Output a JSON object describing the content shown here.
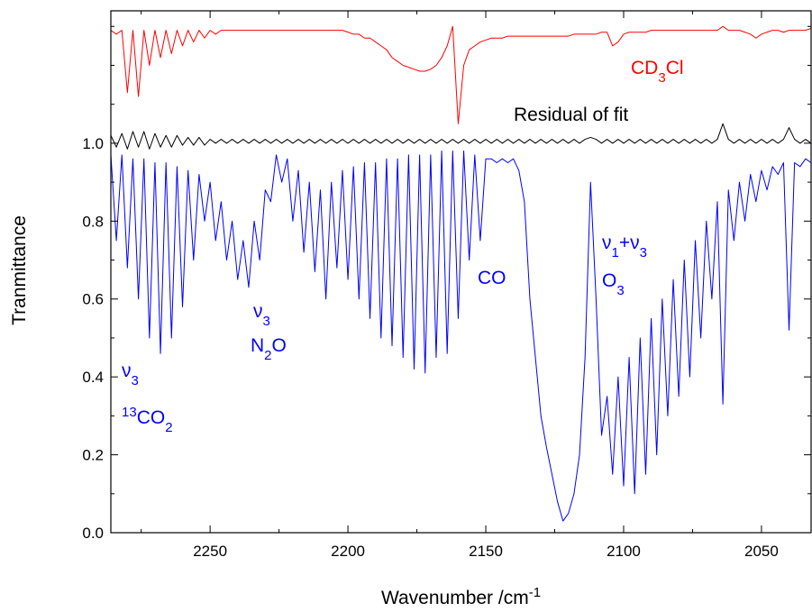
{
  "chart_data": {
    "type": "line",
    "x_label": [
      {
        "text": "Wavenumber /cm"
      },
      {
        "text": "-1",
        "shift": "super"
      }
    ],
    "y_label": "Tranmittance",
    "xlim": [
      2286,
      2032
    ],
    "ylim": [
      0,
      1.34
    ],
    "xticks": [
      2250,
      2200,
      2150,
      2100,
      2050
    ],
    "xminorticks": [
      2275,
      2225,
      2175,
      2125,
      2075
    ],
    "yticks": [
      {
        "value": 0,
        "label": "0.0"
      },
      0.2,
      0.4,
      0.6,
      0.8,
      {
        "value": 1,
        "label": "1.0"
      }
    ],
    "yminorticks": [
      0.1,
      0.3,
      0.5,
      0.7,
      0.9,
      1.1,
      1.2,
      1.3
    ],
    "x": [
      2286,
      2284,
      2282,
      2280,
      2278,
      2276,
      2274,
      2272,
      2270,
      2268,
      2266,
      2264,
      2262,
      2260,
      2258,
      2256,
      2254,
      2252,
      2250,
      2248,
      2246,
      2244,
      2242,
      2240,
      2238,
      2236,
      2234,
      2232,
      2230,
      2228,
      2226,
      2224,
      2222,
      2220,
      2218,
      2216,
      2214,
      2212,
      2210,
      2208,
      2206,
      2204,
      2202,
      2200,
      2198,
      2196,
      2194,
      2192,
      2190,
      2188,
      2186,
      2184,
      2182,
      2180,
      2178,
      2176,
      2174,
      2172,
      2170,
      2168,
      2166,
      2164,
      2162,
      2160,
      2158,
      2156,
      2154,
      2152,
      2150,
      2148,
      2146,
      2144,
      2142,
      2140,
      2138,
      2136,
      2134,
      2132,
      2130,
      2128,
      2126,
      2124,
      2122,
      2120,
      2118,
      2116,
      2114,
      2112,
      2110,
      2108,
      2106,
      2104,
      2102,
      2100,
      2098,
      2096,
      2094,
      2092,
      2090,
      2088,
      2086,
      2084,
      2082,
      2080,
      2078,
      2076,
      2074,
      2072,
      2070,
      2068,
      2066,
      2064,
      2062,
      2060,
      2058,
      2056,
      2054,
      2052,
      2050,
      2048,
      2046,
      2044,
      2042,
      2040,
      2038,
      2036,
      2034,
      2032
    ],
    "series": [
      {
        "color": "#0000ff",
        "values": [
          0.97,
          0.75,
          0.97,
          0.68,
          0.96,
          0.6,
          0.96,
          0.5,
          0.95,
          0.46,
          0.95,
          0.5,
          0.94,
          0.58,
          0.93,
          0.7,
          0.92,
          0.8,
          0.9,
          0.75,
          0.85,
          0.7,
          0.8,
          0.65,
          0.75,
          0.63,
          0.8,
          0.7,
          0.88,
          0.85,
          0.97,
          0.9,
          0.96,
          0.8,
          0.93,
          0.72,
          0.9,
          0.67,
          0.88,
          0.6,
          0.9,
          0.68,
          0.93,
          0.65,
          0.94,
          0.6,
          0.95,
          0.55,
          0.95,
          0.5,
          0.96,
          0.48,
          0.96,
          0.45,
          0.97,
          0.42,
          0.97,
          0.41,
          0.97,
          0.45,
          0.98,
          0.46,
          0.98,
          0.55,
          0.98,
          0.7,
          0.97,
          0.75,
          0.96,
          0.96,
          0.95,
          0.96,
          0.95,
          0.96,
          0.93,
          0.85,
          0.6,
          0.45,
          0.3,
          0.22,
          0.15,
          0.08,
          0.03,
          0.05,
          0.1,
          0.2,
          0.45,
          0.9,
          0.6,
          0.25,
          0.35,
          0.15,
          0.4,
          0.12,
          0.45,
          0.1,
          0.5,
          0.15,
          0.55,
          0.2,
          0.6,
          0.3,
          0.65,
          0.35,
          0.7,
          0.4,
          0.75,
          0.5,
          0.8,
          0.6,
          0.85,
          0.33,
          0.88,
          0.75,
          0.9,
          0.8,
          0.92,
          0.85,
          0.93,
          0.88,
          0.94,
          0.92,
          0.95,
          0.52,
          0.95,
          0.94,
          0.96,
          0.95
        ]
      },
      {
        "color": "#ff0000",
        "values": [
          1.29,
          1.28,
          1.29,
          1.13,
          1.29,
          1.12,
          1.29,
          1.2,
          1.29,
          1.22,
          1.29,
          1.23,
          1.29,
          1.25,
          1.29,
          1.26,
          1.29,
          1.27,
          1.29,
          1.28,
          1.29,
          1.29,
          1.29,
          1.29,
          1.29,
          1.29,
          1.29,
          1.29,
          1.29,
          1.29,
          1.29,
          1.29,
          1.29,
          1.29,
          1.29,
          1.29,
          1.29,
          1.29,
          1.29,
          1.29,
          1.29,
          1.29,
          1.29,
          1.285,
          1.28,
          1.28,
          1.27,
          1.27,
          1.26,
          1.25,
          1.24,
          1.22,
          1.21,
          1.2,
          1.195,
          1.19,
          1.185,
          1.185,
          1.19,
          1.2,
          1.22,
          1.25,
          1.3,
          1.05,
          1.2,
          1.24,
          1.25,
          1.26,
          1.265,
          1.27,
          1.27,
          1.27,
          1.275,
          1.275,
          1.275,
          1.275,
          1.275,
          1.275,
          1.275,
          1.275,
          1.275,
          1.275,
          1.275,
          1.275,
          1.28,
          1.28,
          1.28,
          1.28,
          1.28,
          1.285,
          1.285,
          1.25,
          1.26,
          1.28,
          1.285,
          1.285,
          1.285,
          1.285,
          1.29,
          1.29,
          1.29,
          1.29,
          1.29,
          1.29,
          1.29,
          1.29,
          1.29,
          1.29,
          1.29,
          1.29,
          1.29,
          1.3,
          1.29,
          1.29,
          1.29,
          1.285,
          1.28,
          1.27,
          1.28,
          1.285,
          1.29,
          1.29,
          1.285,
          1.29,
          1.29,
          1.29,
          1.29,
          1.295
        ]
      },
      {
        "color": "#000000",
        "values": [
          1.02,
          0.99,
          1.025,
          0.985,
          1.03,
          0.99,
          1.03,
          0.985,
          1.025,
          0.99,
          1.02,
          0.99,
          1.02,
          0.995,
          1.015,
          0.995,
          1.015,
          0.995,
          1.01,
          1.0,
          1.01,
          1.0,
          1.01,
          1.0,
          1.01,
          1.0,
          1.01,
          1.0,
          1.01,
          1.0,
          1.01,
          1.0,
          1.01,
          1.0,
          1.01,
          1.0,
          1.01,
          1.0,
          1.01,
          1.0,
          1.01,
          1.0,
          1.01,
          1.0,
          1.01,
          1.0,
          1.01,
          1.0,
          1.01,
          1.0,
          1.01,
          1.0,
          1.01,
          1.0,
          1.01,
          1.0,
          1.01,
          1.0,
          1.01,
          1.0,
          1.01,
          1.0,
          1.01,
          1.0,
          1.01,
          1.0,
          1.01,
          1.0,
          1.01,
          1.0,
          1.01,
          1.0,
          1.01,
          1.0,
          1.01,
          1.0,
          1.01,
          1.0,
          1.01,
          1.0,
          1.01,
          1.0,
          1.01,
          1.0,
          1.01,
          1.0,
          1.01,
          1.015,
          1.01,
          1.0,
          1.01,
          1.0,
          1.01,
          1.0,
          1.01,
          1.0,
          1.01,
          1.0,
          1.01,
          1.0,
          1.01,
          1.0,
          1.01,
          1.0,
          1.01,
          1.0,
          1.01,
          1.0,
          1.01,
          1.0,
          1.01,
          1.05,
          1.01,
          1.0,
          1.01,
          1.0,
          1.01,
          1.0,
          1.01,
          1.0,
          1.01,
          1.0,
          1.01,
          1.04,
          1.01,
          1.0,
          1.01,
          1.0
        ]
      }
    ],
    "annotations": [
      {
        "color": "#0000ff",
        "parts": [
          {
            "text": "ν"
          },
          {
            "text": "3",
            "shift": "sub"
          }
        ]
      },
      {
        "color": "#0000ff",
        "parts": [
          {
            "text": "13",
            "shift": "super"
          },
          {
            "text": "CO"
          },
          {
            "text": "2",
            "shift": "sub"
          }
        ]
      },
      {
        "color": "#0000ff",
        "parts": [
          {
            "text": "ν"
          },
          {
            "text": "3",
            "shift": "sub"
          }
        ]
      },
      {
        "color": "#0000ff",
        "parts": [
          {
            "text": "N"
          },
          {
            "text": "2",
            "shift": "sub"
          },
          {
            "text": "O"
          }
        ]
      },
      {
        "color": "#0000ff",
        "parts": [
          {
            "text": "CO"
          }
        ]
      },
      {
        "color": "#0000ff",
        "parts": [
          {
            "text": "ν"
          },
          {
            "text": "1",
            "shift": "sub"
          },
          {
            "text": "+ν"
          },
          {
            "text": "3",
            "shift": "sub"
          }
        ]
      },
      {
        "color": "#0000ff",
        "parts": [
          {
            "text": "O"
          },
          {
            "text": "3",
            "shift": "sub"
          }
        ]
      },
      {
        "color": "#ff0000",
        "parts": [
          {
            "text": "CD"
          },
          {
            "text": "3",
            "shift": "sub"
          },
          {
            "text": "Cl"
          }
        ]
      },
      {
        "color": "#000000",
        "parts": [
          {
            "text": "Residual of fit"
          }
        ]
      }
    ]
  }
}
